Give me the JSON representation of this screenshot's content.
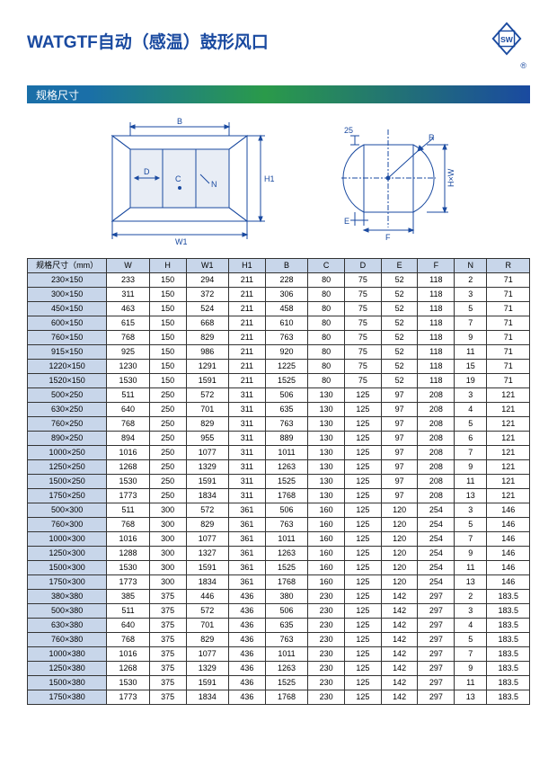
{
  "title": "WATGTF自动（感温）鼓形风口",
  "section_label": "规格尺寸",
  "dim_labels": {
    "B": "B",
    "D": "D",
    "C": "C",
    "N": "N",
    "H1": "H1",
    "W1": "W1",
    "R": "R",
    "Top25": "25",
    "HxW": "H×W",
    "E": "E",
    "F": "F"
  },
  "colors": {
    "title": "#1a4aa0",
    "bar_start": "#1a6fa8",
    "bar_mid": "#2a9a4a",
    "bar_end": "#1a4aa0",
    "th_bg": "#c8d6ea",
    "line": "#1a4aa0"
  },
  "table": {
    "columns": [
      "规格尺寸（mm）",
      "W",
      "H",
      "W1",
      "H1",
      "B",
      "C",
      "D",
      "E",
      "F",
      "N",
      "R"
    ],
    "rows": [
      [
        "230×150",
        "233",
        "150",
        "294",
        "211",
        "228",
        "80",
        "75",
        "52",
        "118",
        "2",
        "71"
      ],
      [
        "300×150",
        "311",
        "150",
        "372",
        "211",
        "306",
        "80",
        "75",
        "52",
        "118",
        "3",
        "71"
      ],
      [
        "450×150",
        "463",
        "150",
        "524",
        "211",
        "458",
        "80",
        "75",
        "52",
        "118",
        "5",
        "71"
      ],
      [
        "600×150",
        "615",
        "150",
        "668",
        "211",
        "610",
        "80",
        "75",
        "52",
        "118",
        "7",
        "71"
      ],
      [
        "760×150",
        "768",
        "150",
        "829",
        "211",
        "763",
        "80",
        "75",
        "52",
        "118",
        "9",
        "71"
      ],
      [
        "915×150",
        "925",
        "150",
        "986",
        "211",
        "920",
        "80",
        "75",
        "52",
        "118",
        "11",
        "71"
      ],
      [
        "1220×150",
        "1230",
        "150",
        "1291",
        "211",
        "1225",
        "80",
        "75",
        "52",
        "118",
        "15",
        "71"
      ],
      [
        "1520×150",
        "1530",
        "150",
        "1591",
        "211",
        "1525",
        "80",
        "75",
        "52",
        "118",
        "19",
        "71"
      ],
      [
        "500×250",
        "511",
        "250",
        "572",
        "311",
        "506",
        "130",
        "125",
        "97",
        "208",
        "3",
        "121"
      ],
      [
        "630×250",
        "640",
        "250",
        "701",
        "311",
        "635",
        "130",
        "125",
        "97",
        "208",
        "4",
        "121"
      ],
      [
        "760×250",
        "768",
        "250",
        "829",
        "311",
        "763",
        "130",
        "125",
        "97",
        "208",
        "5",
        "121"
      ],
      [
        "890×250",
        "894",
        "250",
        "955",
        "311",
        "889",
        "130",
        "125",
        "97",
        "208",
        "6",
        "121"
      ],
      [
        "1000×250",
        "1016",
        "250",
        "1077",
        "311",
        "1011",
        "130",
        "125",
        "97",
        "208",
        "7",
        "121"
      ],
      [
        "1250×250",
        "1268",
        "250",
        "1329",
        "311",
        "1263",
        "130",
        "125",
        "97",
        "208",
        "9",
        "121"
      ],
      [
        "1500×250",
        "1530",
        "250",
        "1591",
        "311",
        "1525",
        "130",
        "125",
        "97",
        "208",
        "11",
        "121"
      ],
      [
        "1750×250",
        "1773",
        "250",
        "1834",
        "311",
        "1768",
        "130",
        "125",
        "97",
        "208",
        "13",
        "121"
      ],
      [
        "500×300",
        "511",
        "300",
        "572",
        "361",
        "506",
        "160",
        "125",
        "120",
        "254",
        "3",
        "146"
      ],
      [
        "760×300",
        "768",
        "300",
        "829",
        "361",
        "763",
        "160",
        "125",
        "120",
        "254",
        "5",
        "146"
      ],
      [
        "1000×300",
        "1016",
        "300",
        "1077",
        "361",
        "1011",
        "160",
        "125",
        "120",
        "254",
        "7",
        "146"
      ],
      [
        "1250×300",
        "1288",
        "300",
        "1327",
        "361",
        "1263",
        "160",
        "125",
        "120",
        "254",
        "9",
        "146"
      ],
      [
        "1500×300",
        "1530",
        "300",
        "1591",
        "361",
        "1525",
        "160",
        "125",
        "120",
        "254",
        "11",
        "146"
      ],
      [
        "1750×300",
        "1773",
        "300",
        "1834",
        "361",
        "1768",
        "160",
        "125",
        "120",
        "254",
        "13",
        "146"
      ],
      [
        "380×380",
        "385",
        "375",
        "446",
        "436",
        "380",
        "230",
        "125",
        "142",
        "297",
        "2",
        "183.5"
      ],
      [
        "500×380",
        "511",
        "375",
        "572",
        "436",
        "506",
        "230",
        "125",
        "142",
        "297",
        "3",
        "183.5"
      ],
      [
        "630×380",
        "640",
        "375",
        "701",
        "436",
        "635",
        "230",
        "125",
        "142",
        "297",
        "4",
        "183.5"
      ],
      [
        "760×380",
        "768",
        "375",
        "829",
        "436",
        "763",
        "230",
        "125",
        "142",
        "297",
        "5",
        "183.5"
      ],
      [
        "1000×380",
        "1016",
        "375",
        "1077",
        "436",
        "1011",
        "230",
        "125",
        "142",
        "297",
        "7",
        "183.5"
      ],
      [
        "1250×380",
        "1268",
        "375",
        "1329",
        "436",
        "1263",
        "230",
        "125",
        "142",
        "297",
        "9",
        "183.5"
      ],
      [
        "1500×380",
        "1530",
        "375",
        "1591",
        "436",
        "1525",
        "230",
        "125",
        "142",
        "297",
        "11",
        "183.5"
      ],
      [
        "1750×380",
        "1773",
        "375",
        "1834",
        "436",
        "1768",
        "230",
        "125",
        "142",
        "297",
        "13",
        "183.5"
      ]
    ]
  }
}
